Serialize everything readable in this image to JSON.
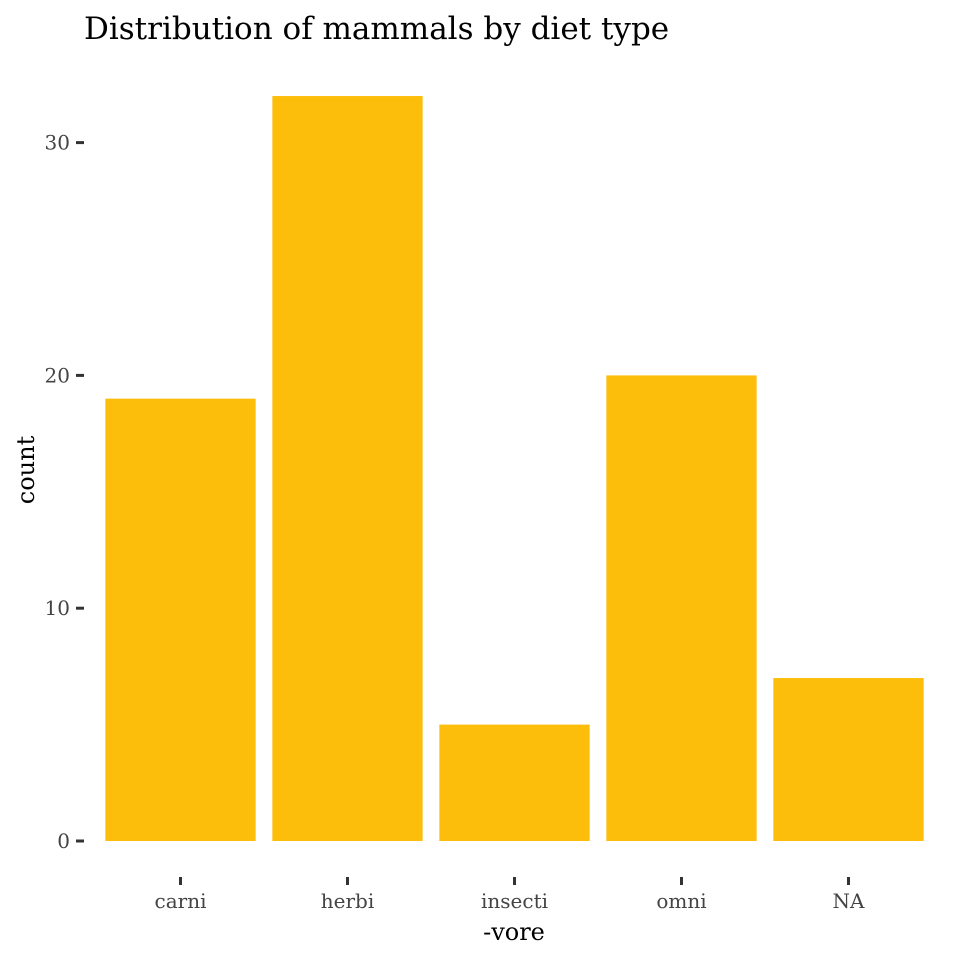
{
  "chart_data": {
    "type": "bar",
    "title": "Distribution of mammals by diet type",
    "xlabel": "-vore",
    "ylabel": "count",
    "categories": [
      "carni",
      "herbi",
      "insecti",
      "omni",
      "NA"
    ],
    "values": [
      19,
      32,
      5,
      20,
      7
    ],
    "ylim": [
      0,
      33.6
    ],
    "yticks": [
      0,
      10,
      20,
      30
    ],
    "bar_color": "#FCBE0B",
    "grid": false,
    "legend": "none"
  }
}
